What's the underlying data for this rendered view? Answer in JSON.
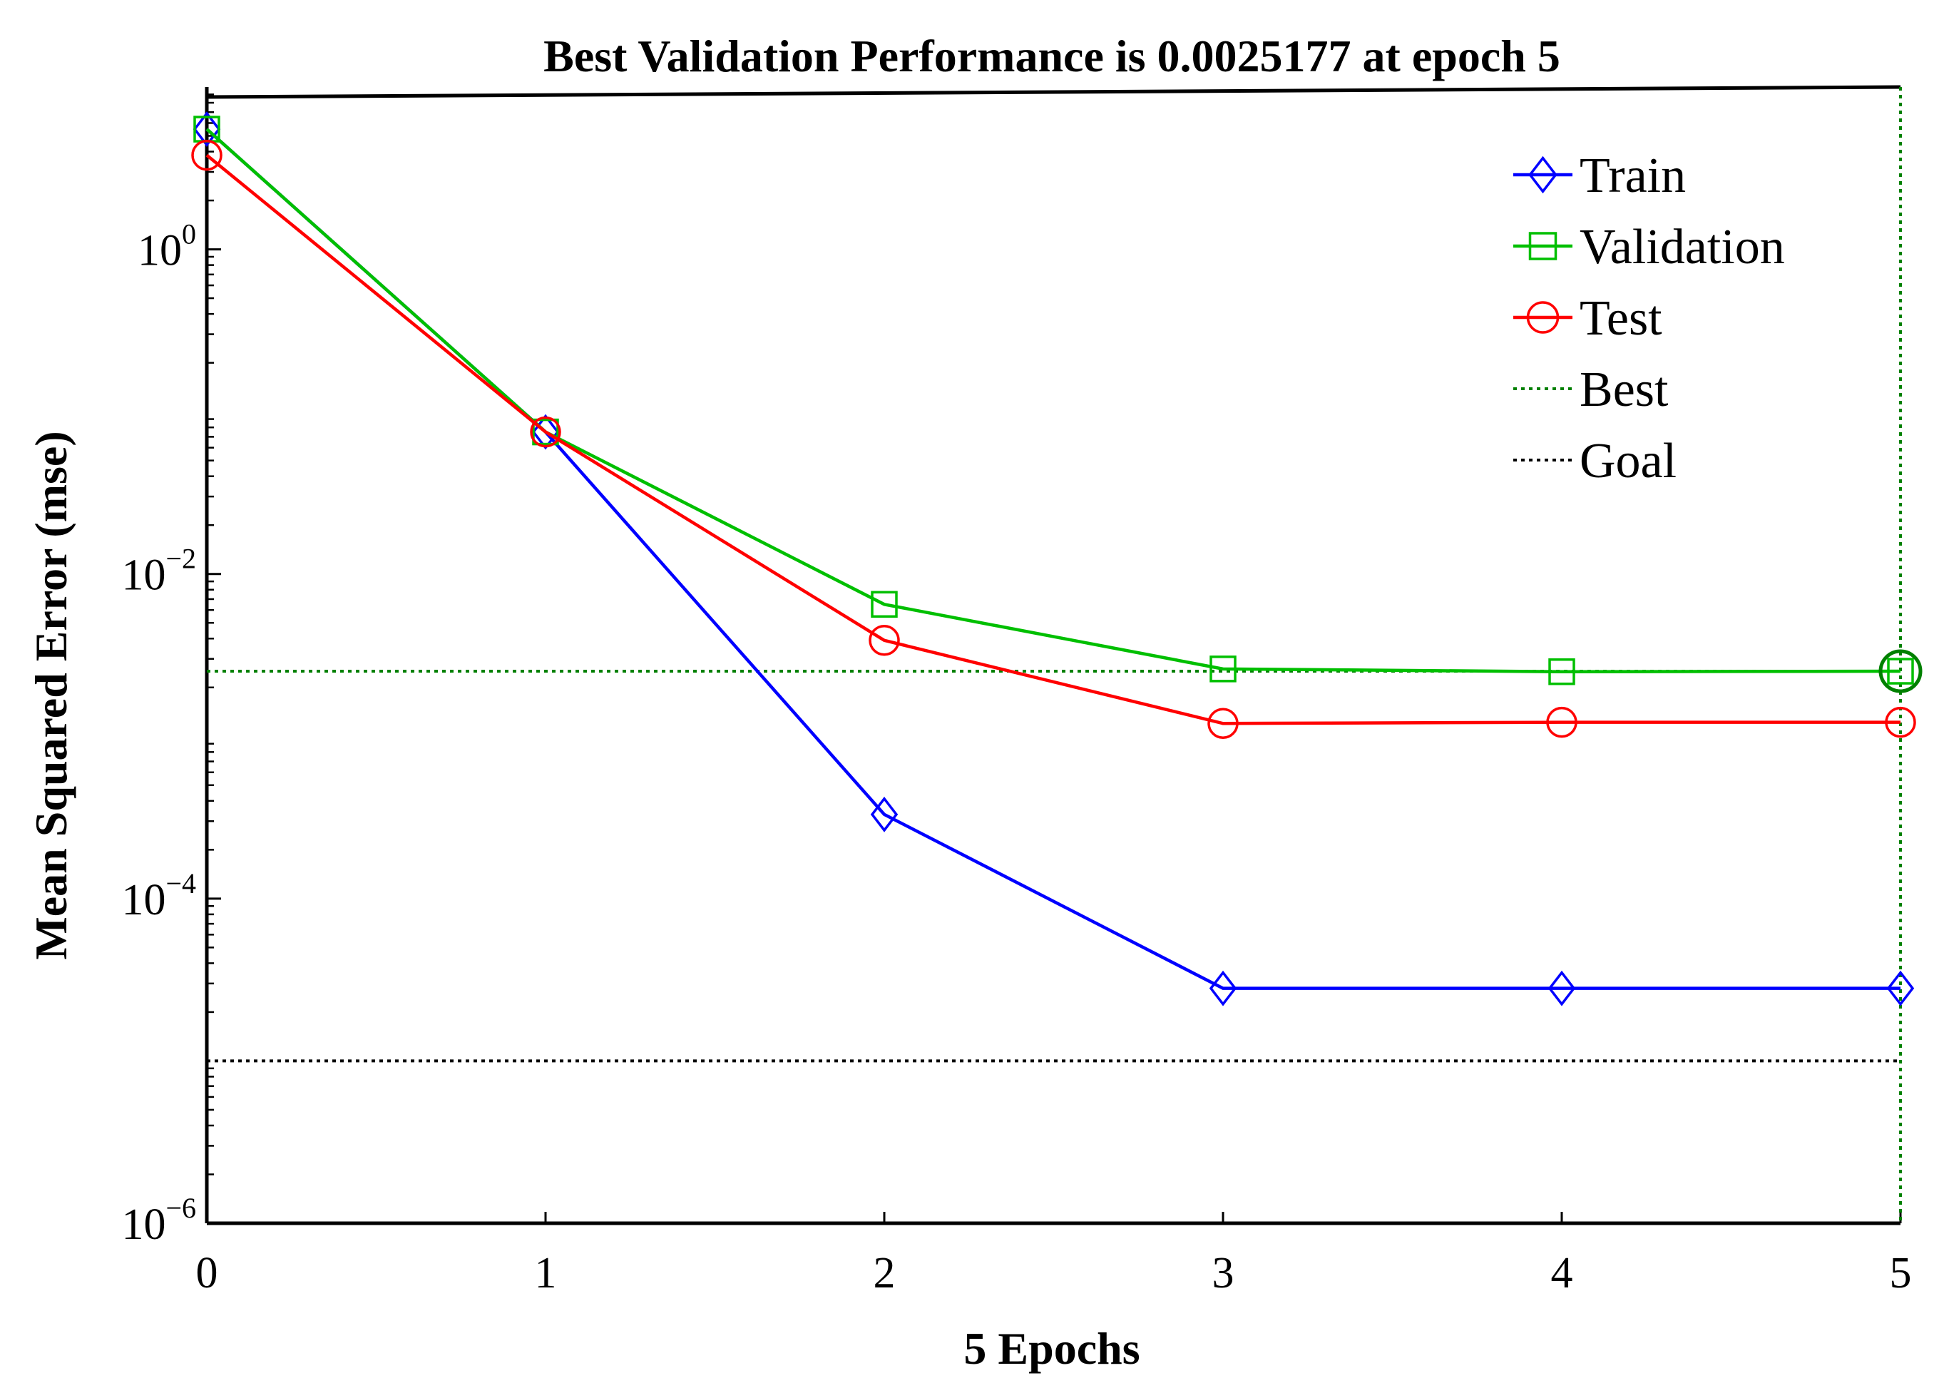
{
  "chart_data": {
    "type": "line",
    "title": "Best Validation Performance is 0.0025177 at epoch 5",
    "xlabel": "5 Epochs",
    "ylabel": "Mean Squared Error  (mse)",
    "yscale": "log",
    "xlim": [
      0,
      5
    ],
    "ylim": [
      1e-06,
      10
    ],
    "x": [
      0,
      1,
      2,
      3,
      4,
      5
    ],
    "x_ticks": [
      "0",
      "1",
      "2",
      "3",
      "4",
      "5"
    ],
    "y_ticks": [
      {
        "base": "10",
        "exp": "0",
        "value": 1
      },
      {
        "base": "10",
        "exp": "−2",
        "value": 0.01
      },
      {
        "base": "10",
        "exp": "−4",
        "value": 0.0001
      },
      {
        "base": "10",
        "exp": "−6",
        "value": 1e-06
      }
    ],
    "series": [
      {
        "name": "Train",
        "color": "#0000ff",
        "marker": "diamond",
        "values": [
          5.5,
          0.075,
          0.00033,
          2.8e-05,
          2.8e-05,
          2.8e-05
        ]
      },
      {
        "name": "Validation",
        "color": "#00bf00",
        "marker": "square",
        "values": [
          5.5,
          0.075,
          0.0065,
          0.0026,
          0.0025,
          0.0025177
        ]
      },
      {
        "name": "Test",
        "color": "#ff0000",
        "marker": "circle",
        "values": [
          3.8,
          0.075,
          0.0039,
          0.0012,
          0.00122,
          0.00122
        ]
      }
    ],
    "best": {
      "name": "Best",
      "epoch": 5,
      "value": 0.0025177,
      "color": "#008000"
    },
    "goal": {
      "name": "Goal",
      "value": 1e-05,
      "color": "#000000"
    },
    "legend_position": "top-right",
    "grid": false
  }
}
